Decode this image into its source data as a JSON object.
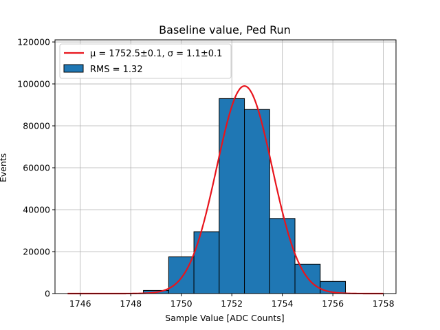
{
  "chart_data": {
    "type": "bar",
    "title": "Baseline value, Ped Run",
    "xlabel": "Sample Value [ADC Counts]",
    "ylabel": "Events",
    "xlim": [
      1745.0,
      1758.5
    ],
    "ylim": [
      0,
      121000
    ],
    "xticks": [
      1746,
      1748,
      1750,
      1752,
      1754,
      1756,
      1758
    ],
    "yticks": [
      0,
      20000,
      40000,
      60000,
      80000,
      100000,
      120000
    ],
    "grid": true,
    "legend_position": "top-left",
    "histogram": {
      "name": "RMS = 1.32",
      "color": "#1f77b4",
      "edge_color": "#000000",
      "bins": [
        {
          "x0": 1748.5,
          "x1": 1749.5,
          "value": 1500
        },
        {
          "x0": 1749.5,
          "x1": 1750.5,
          "value": 17500
        },
        {
          "x0": 1750.5,
          "x1": 1751.5,
          "value": 29500
        },
        {
          "x0": 1751.5,
          "x1": 1752.5,
          "value": 93000
        },
        {
          "x0": 1752.5,
          "x1": 1753.5,
          "value": 87800
        },
        {
          "x0": 1753.5,
          "x1": 1754.5,
          "value": 35800
        },
        {
          "x0": 1754.5,
          "x1": 1755.5,
          "value": 14000
        },
        {
          "x0": 1755.5,
          "x1": 1756.5,
          "value": 5800
        }
      ]
    },
    "fit": {
      "type": "line",
      "name_prefix": "μ = 1752.5±0.1, σ = 1.1±0.1",
      "color": "#e8141c",
      "mu": 1752.5,
      "sigma": 1.1,
      "amplitude": 99000,
      "x_range": [
        1745.5,
        1758.0
      ]
    }
  }
}
